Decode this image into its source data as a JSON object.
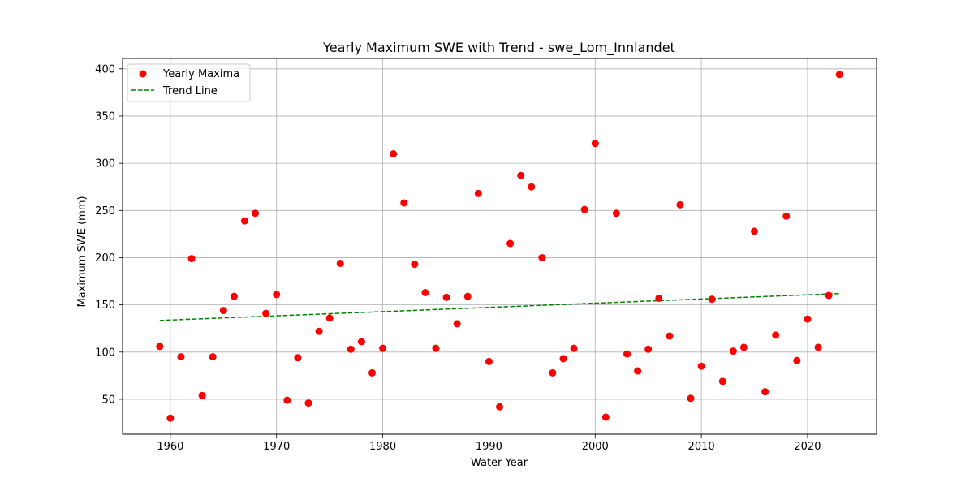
{
  "chart_data": {
    "type": "scatter",
    "title": "Yearly Maximum SWE with Trend - swe_Lom_Innlandet",
    "xlabel": "Water Year",
    "ylabel": "Maximum SWE (mm)",
    "xlim": [
      1955.5,
      2026.5
    ],
    "ylim": [
      13,
      411
    ],
    "xticks": [
      1960,
      1970,
      1980,
      1990,
      2000,
      2010,
      2020
    ],
    "yticks": [
      50,
      100,
      150,
      200,
      250,
      300,
      350,
      400
    ],
    "grid": true,
    "legend_position": "top-left",
    "series": [
      {
        "name": "Yearly Maxima",
        "kind": "scatter",
        "color": "#ff0000",
        "x": [
          1959,
          1960,
          1961,
          1962,
          1963,
          1964,
          1965,
          1966,
          1967,
          1968,
          1969,
          1970,
          1971,
          1972,
          1973,
          1974,
          1975,
          1976,
          1977,
          1978,
          1979,
          1980,
          1981,
          1982,
          1983,
          1984,
          1985,
          1986,
          1987,
          1988,
          1989,
          1990,
          1991,
          1992,
          1993,
          1994,
          1995,
          1996,
          1997,
          1998,
          1999,
          2000,
          2001,
          2002,
          2003,
          2004,
          2005,
          2006,
          2007,
          2008,
          2009,
          2010,
          2011,
          2012,
          2013,
          2014,
          2015,
          2016,
          2017,
          2018,
          2019,
          2020,
          2021,
          2022,
          2023
        ],
        "y": [
          106,
          30,
          95,
          199,
          54,
          95,
          144,
          159,
          239,
          247,
          141,
          161,
          49,
          94,
          46,
          122,
          136,
          194,
          103,
          111,
          78,
          104,
          310,
          258,
          193,
          163,
          104,
          158,
          130,
          159,
          268,
          90,
          42,
          215,
          287,
          275,
          200,
          78,
          93,
          104,
          251,
          321,
          31,
          247,
          98,
          80,
          103,
          157,
          117,
          256,
          51,
          85,
          156,
          69,
          101,
          105,
          228,
          58,
          118,
          244,
          91,
          135,
          105,
          160,
          394
        ]
      },
      {
        "name": "Trend Line",
        "kind": "line",
        "style": "dashed",
        "color": "#008000",
        "x": [
          1959,
          2023
        ],
        "y": [
          133.5,
          162
        ]
      }
    ]
  }
}
